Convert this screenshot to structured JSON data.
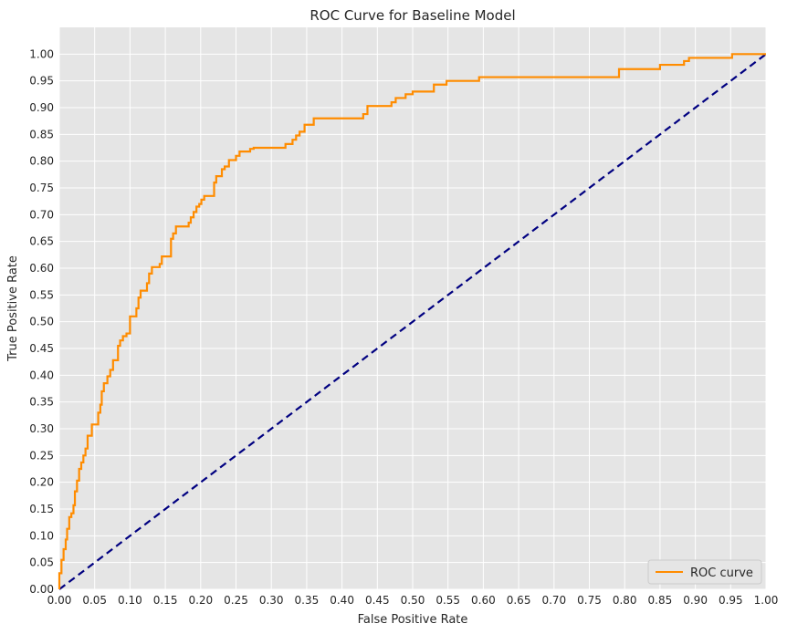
{
  "chart_data": {
    "type": "line",
    "title": "ROC Curve for Baseline Model",
    "xlabel": "False Positive Rate",
    "ylabel": "True Positive Rate",
    "xlim": [
      0,
      1
    ],
    "ylim": [
      0,
      1.05
    ],
    "grid": true,
    "legend_position": "bottom-right",
    "x_ticks": [
      "0.00",
      "0.05",
      "0.10",
      "0.15",
      "0.20",
      "0.25",
      "0.30",
      "0.35",
      "0.40",
      "0.45",
      "0.50",
      "0.55",
      "0.60",
      "0.65",
      "0.70",
      "0.75",
      "0.80",
      "0.85",
      "0.90",
      "0.95",
      "1.00"
    ],
    "y_ticks": [
      "0.00",
      "0.05",
      "0.10",
      "0.15",
      "0.20",
      "0.25",
      "0.30",
      "0.35",
      "0.40",
      "0.45",
      "0.50",
      "0.55",
      "0.60",
      "0.65",
      "0.70",
      "0.75",
      "0.80",
      "0.85",
      "0.90",
      "0.95",
      "1.00"
    ],
    "series": [
      {
        "name": "ROC curve",
        "color": "#ff8c00",
        "style": "solid",
        "x": [
          0.0,
          0.0,
          0.003,
          0.003,
          0.006,
          0.006,
          0.009,
          0.009,
          0.011,
          0.011,
          0.014,
          0.014,
          0.017,
          0.017,
          0.02,
          0.02,
          0.022,
          0.022,
          0.025,
          0.025,
          0.028,
          0.028,
          0.031,
          0.031,
          0.034,
          0.034,
          0.037,
          0.037,
          0.04,
          0.04,
          0.046,
          0.046,
          0.055,
          0.055,
          0.058,
          0.058,
          0.06,
          0.06,
          0.063,
          0.063,
          0.068,
          0.068,
          0.072,
          0.072,
          0.076,
          0.076,
          0.083,
          0.083,
          0.086,
          0.086,
          0.09,
          0.09,
          0.095,
          0.095,
          0.1,
          0.1,
          0.109,
          0.109,
          0.112,
          0.112,
          0.115,
          0.115,
          0.124,
          0.124,
          0.127,
          0.127,
          0.131,
          0.131,
          0.142,
          0.142,
          0.145,
          0.145,
          0.158,
          0.158,
          0.161,
          0.161,
          0.165,
          0.165,
          0.183,
          0.183,
          0.186,
          0.186,
          0.19,
          0.19,
          0.194,
          0.194,
          0.198,
          0.198,
          0.201,
          0.201,
          0.205,
          0.205,
          0.219,
          0.219,
          0.222,
          0.222,
          0.23,
          0.23,
          0.234,
          0.234,
          0.24,
          0.24,
          0.25,
          0.25,
          0.255,
          0.255,
          0.27,
          0.27,
          0.275,
          0.275,
          0.32,
          0.32,
          0.33,
          0.33,
          0.335,
          0.335,
          0.34,
          0.34,
          0.347,
          0.347,
          0.36,
          0.36,
          0.43,
          0.43,
          0.436,
          0.436,
          0.47,
          0.47,
          0.476,
          0.476,
          0.49,
          0.49,
          0.5,
          0.5,
          0.53,
          0.53,
          0.548,
          0.548,
          0.594,
          0.594,
          0.792,
          0.792,
          0.85,
          0.85,
          0.884,
          0.884,
          0.891,
          0.891,
          0.952,
          0.952,
          1.0
        ],
        "y": [
          0.0,
          0.03,
          0.03,
          0.055,
          0.055,
          0.075,
          0.075,
          0.093,
          0.093,
          0.113,
          0.113,
          0.135,
          0.135,
          0.142,
          0.142,
          0.157,
          0.157,
          0.183,
          0.183,
          0.203,
          0.203,
          0.225,
          0.225,
          0.237,
          0.237,
          0.25,
          0.25,
          0.263,
          0.263,
          0.287,
          0.287,
          0.308,
          0.308,
          0.33,
          0.33,
          0.345,
          0.345,
          0.37,
          0.37,
          0.385,
          0.385,
          0.398,
          0.398,
          0.41,
          0.41,
          0.428,
          0.428,
          0.455,
          0.455,
          0.465,
          0.465,
          0.473,
          0.473,
          0.478,
          0.478,
          0.51,
          0.51,
          0.525,
          0.525,
          0.545,
          0.545,
          0.558,
          0.558,
          0.572,
          0.572,
          0.59,
          0.59,
          0.602,
          0.602,
          0.608,
          0.608,
          0.622,
          0.622,
          0.655,
          0.655,
          0.665,
          0.665,
          0.678,
          0.678,
          0.685,
          0.685,
          0.695,
          0.695,
          0.705,
          0.705,
          0.715,
          0.715,
          0.72,
          0.72,
          0.728,
          0.728,
          0.735,
          0.735,
          0.76,
          0.76,
          0.772,
          0.772,
          0.785,
          0.785,
          0.79,
          0.79,
          0.802,
          0.802,
          0.81,
          0.81,
          0.818,
          0.818,
          0.823,
          0.823,
          0.825,
          0.825,
          0.832,
          0.832,
          0.84,
          0.84,
          0.848,
          0.848,
          0.855,
          0.855,
          0.868,
          0.868,
          0.88,
          0.88,
          0.888,
          0.888,
          0.903,
          0.903,
          0.91,
          0.91,
          0.918,
          0.918,
          0.925,
          0.925,
          0.93,
          0.93,
          0.943,
          0.943,
          0.95,
          0.95,
          0.957,
          0.957,
          0.972,
          0.972,
          0.98,
          0.98,
          0.987,
          0.987,
          0.993,
          0.993,
          1.0,
          1.0
        ]
      },
      {
        "name": "",
        "color": "#000080",
        "style": "dashed",
        "x": [
          0,
          1
        ],
        "y": [
          0,
          1
        ]
      }
    ]
  }
}
